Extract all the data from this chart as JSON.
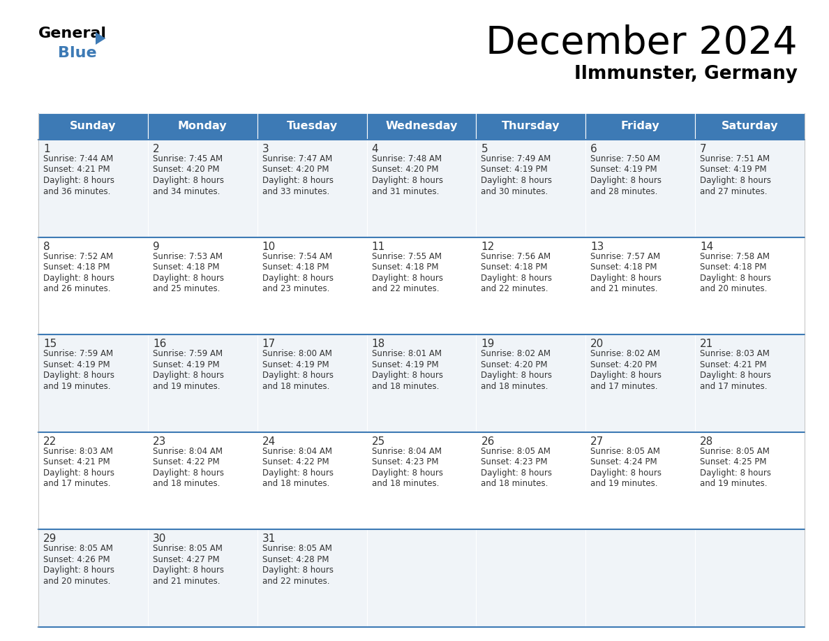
{
  "title": "December 2024",
  "subtitle": "Ilmmunster, Germany",
  "header_color": "#3d7ab5",
  "header_text_color": "#ffffff",
  "row_bg_odd": "#f0f4f8",
  "row_bg_even": "#ffffff",
  "text_color": "#333333",
  "days_of_week": [
    "Sunday",
    "Monday",
    "Tuesday",
    "Wednesday",
    "Thursday",
    "Friday",
    "Saturday"
  ],
  "weeks": [
    [
      {
        "day": 1,
        "sunrise": "7:44 AM",
        "sunset": "4:21 PM",
        "daylight_min": "and 36 minutes."
      },
      {
        "day": 2,
        "sunrise": "7:45 AM",
        "sunset": "4:20 PM",
        "daylight_min": "and 34 minutes."
      },
      {
        "day": 3,
        "sunrise": "7:47 AM",
        "sunset": "4:20 PM",
        "daylight_min": "and 33 minutes."
      },
      {
        "day": 4,
        "sunrise": "7:48 AM",
        "sunset": "4:20 PM",
        "daylight_min": "and 31 minutes."
      },
      {
        "day": 5,
        "sunrise": "7:49 AM",
        "sunset": "4:19 PM",
        "daylight_min": "and 30 minutes."
      },
      {
        "day": 6,
        "sunrise": "7:50 AM",
        "sunset": "4:19 PM",
        "daylight_min": "and 28 minutes."
      },
      {
        "day": 7,
        "sunrise": "7:51 AM",
        "sunset": "4:19 PM",
        "daylight_min": "and 27 minutes."
      }
    ],
    [
      {
        "day": 8,
        "sunrise": "7:52 AM",
        "sunset": "4:18 PM",
        "daylight_min": "and 26 minutes."
      },
      {
        "day": 9,
        "sunrise": "7:53 AM",
        "sunset": "4:18 PM",
        "daylight_min": "and 25 minutes."
      },
      {
        "day": 10,
        "sunrise": "7:54 AM",
        "sunset": "4:18 PM",
        "daylight_min": "and 23 minutes."
      },
      {
        "day": 11,
        "sunrise": "7:55 AM",
        "sunset": "4:18 PM",
        "daylight_min": "and 22 minutes."
      },
      {
        "day": 12,
        "sunrise": "7:56 AM",
        "sunset": "4:18 PM",
        "daylight_min": "and 22 minutes."
      },
      {
        "day": 13,
        "sunrise": "7:57 AM",
        "sunset": "4:18 PM",
        "daylight_min": "and 21 minutes."
      },
      {
        "day": 14,
        "sunrise": "7:58 AM",
        "sunset": "4:18 PM",
        "daylight_min": "and 20 minutes."
      }
    ],
    [
      {
        "day": 15,
        "sunrise": "7:59 AM",
        "sunset": "4:19 PM",
        "daylight_min": "and 19 minutes."
      },
      {
        "day": 16,
        "sunrise": "7:59 AM",
        "sunset": "4:19 PM",
        "daylight_min": "and 19 minutes."
      },
      {
        "day": 17,
        "sunrise": "8:00 AM",
        "sunset": "4:19 PM",
        "daylight_min": "and 18 minutes."
      },
      {
        "day": 18,
        "sunrise": "8:01 AM",
        "sunset": "4:19 PM",
        "daylight_min": "and 18 minutes."
      },
      {
        "day": 19,
        "sunrise": "8:02 AM",
        "sunset": "4:20 PM",
        "daylight_min": "and 18 minutes."
      },
      {
        "day": 20,
        "sunrise": "8:02 AM",
        "sunset": "4:20 PM",
        "daylight_min": "and 17 minutes."
      },
      {
        "day": 21,
        "sunrise": "8:03 AM",
        "sunset": "4:21 PM",
        "daylight_min": "and 17 minutes."
      }
    ],
    [
      {
        "day": 22,
        "sunrise": "8:03 AM",
        "sunset": "4:21 PM",
        "daylight_min": "and 17 minutes."
      },
      {
        "day": 23,
        "sunrise": "8:04 AM",
        "sunset": "4:22 PM",
        "daylight_min": "and 18 minutes."
      },
      {
        "day": 24,
        "sunrise": "8:04 AM",
        "sunset": "4:22 PM",
        "daylight_min": "and 18 minutes."
      },
      {
        "day": 25,
        "sunrise": "8:04 AM",
        "sunset": "4:23 PM",
        "daylight_min": "and 18 minutes."
      },
      {
        "day": 26,
        "sunrise": "8:05 AM",
        "sunset": "4:23 PM",
        "daylight_min": "and 18 minutes."
      },
      {
        "day": 27,
        "sunrise": "8:05 AM",
        "sunset": "4:24 PM",
        "daylight_min": "and 19 minutes."
      },
      {
        "day": 28,
        "sunrise": "8:05 AM",
        "sunset": "4:25 PM",
        "daylight_min": "and 19 minutes."
      }
    ],
    [
      {
        "day": 29,
        "sunrise": "8:05 AM",
        "sunset": "4:26 PM",
        "daylight_min": "and 20 minutes."
      },
      {
        "day": 30,
        "sunrise": "8:05 AM",
        "sunset": "4:27 PM",
        "daylight_min": "and 21 minutes."
      },
      {
        "day": 31,
        "sunrise": "8:05 AM",
        "sunset": "4:28 PM",
        "daylight_min": "and 22 minutes."
      },
      null,
      null,
      null,
      null
    ]
  ]
}
